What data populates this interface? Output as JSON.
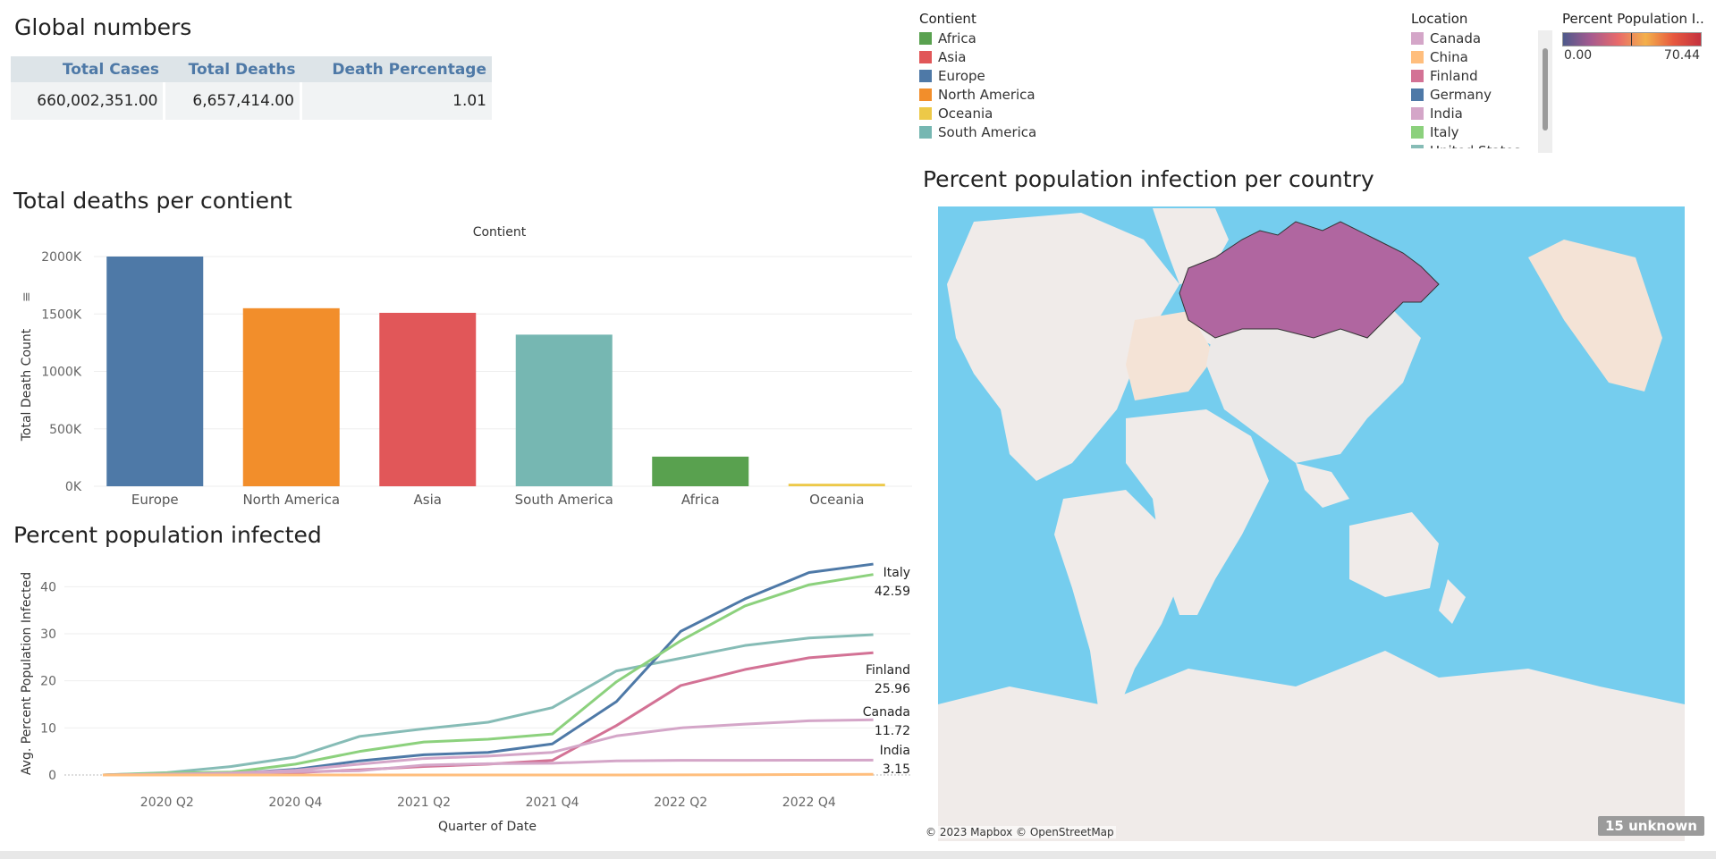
{
  "global_numbers": {
    "title": "Global numbers",
    "headers": [
      "Total Cases",
      "Total Deaths",
      "Death Percentage"
    ],
    "values": [
      "660,002,351.00",
      "6,657,414.00",
      "1.01"
    ]
  },
  "contient_legend": {
    "title": "Contient",
    "items": [
      {
        "label": "Africa",
        "color": "#59a14f"
      },
      {
        "label": "Asia",
        "color": "#e15759"
      },
      {
        "label": "Europe",
        "color": "#4e79a7"
      },
      {
        "label": "North America",
        "color": "#f28e2b"
      },
      {
        "label": "Oceania",
        "color": "#edc948"
      },
      {
        "label": "South America",
        "color": "#76b7b2"
      }
    ]
  },
  "location_legend": {
    "title": "Location",
    "items": [
      {
        "label": "Canada",
        "color": "#d4a6c8"
      },
      {
        "label": "China",
        "color": "#ffbe7d"
      },
      {
        "label": "Finland",
        "color": "#d37295"
      },
      {
        "label": "Germany",
        "color": "#4e79a7"
      },
      {
        "label": "India",
        "color": "#d4a6c8"
      },
      {
        "label": "Italy",
        "color": "#8cd17d"
      },
      {
        "label": "United States",
        "color": "#86bcb6"
      }
    ]
  },
  "percent_legend": {
    "title": "Percent Population I..",
    "min": "0.00",
    "max": "70.44"
  },
  "deaths_chart": {
    "title": "Total deaths per contient",
    "header": "Contient",
    "ylabel": "Total Death Count",
    "yticks": [
      "0K",
      "500K",
      "1000K",
      "1500K",
      "2000K"
    ]
  },
  "infected_chart": {
    "title": "Percent population infected",
    "ylabel": "Avg. Percent Population Infected",
    "xlabel": "Quarter of Date",
    "yticks": [
      "0",
      "10",
      "20",
      "30",
      "40"
    ],
    "xticks": [
      "2020 Q2",
      "2020 Q4",
      "2021 Q2",
      "2021 Q4",
      "2022 Q2",
      "2022 Q4"
    ]
  },
  "map": {
    "title": "Percent population infection per country",
    "attribution": "© 2023 Mapbox © OpenStreetMap",
    "unknown_badge": "15 unknown"
  },
  "chart_data": [
    {
      "type": "bar",
      "title": "Total deaths per contient",
      "xlabel": "Contient",
      "ylabel": "Total Death Count",
      "ylim": [
        0,
        2000000
      ],
      "categories": [
        "Europe",
        "North America",
        "Asia",
        "South America",
        "Africa",
        "Oceania"
      ],
      "values": [
        2000000,
        1550000,
        1510000,
        1320000,
        258000,
        22000
      ],
      "colors": [
        "#4e79a7",
        "#f28e2b",
        "#e15759",
        "#76b7b2",
        "#59a14f",
        "#edc948"
      ]
    },
    {
      "type": "line",
      "title": "Percent population infected",
      "xlabel": "Quarter of Date",
      "ylabel": "Avg. Percent Population Infected",
      "ylim": [
        0,
        45
      ],
      "x": [
        "2020 Q1",
        "2020 Q2",
        "2020 Q3",
        "2020 Q4",
        "2021 Q1",
        "2021 Q2",
        "2021 Q3",
        "2021 Q4",
        "2022 Q1",
        "2022 Q2",
        "2022 Q3",
        "2022 Q4",
        "2023 Q1"
      ],
      "series": [
        {
          "name": "United States",
          "color": "#86bcb6",
          "values": [
            0,
            0.5,
            1.8,
            3.8,
            8.2,
            9.8,
            11.2,
            14.3,
            22.1,
            24.8,
            27.5,
            29.1,
            29.8
          ]
        },
        {
          "name": "Germany",
          "color": "#4e79a7",
          "values": [
            0,
            0.2,
            0.3,
            1.2,
            3.0,
            4.3,
            4.8,
            6.6,
            15.6,
            30.5,
            37.4,
            43.0,
            44.8
          ]
        },
        {
          "name": "Italy",
          "color": "#8cd17d",
          "label": "Italy",
          "end_value": "42.59",
          "values": [
            0,
            0.4,
            0.6,
            2.3,
            5.0,
            7.0,
            7.6,
            8.7,
            19.8,
            28.5,
            35.9,
            40.4,
            42.59
          ]
        },
        {
          "name": "Finland",
          "color": "#d37295",
          "label": "Finland",
          "end_value": "25.96",
          "values": [
            0,
            0.1,
            0.2,
            0.5,
            1.1,
            1.8,
            2.3,
            3.1,
            10.5,
            19.0,
            22.4,
            24.9,
            25.96
          ]
        },
        {
          "name": "Canada",
          "color": "#d4a6c8",
          "label": "Canada",
          "end_value": "11.72",
          "values": [
            0,
            0.2,
            0.4,
            1.0,
            2.3,
            3.5,
            4.0,
            4.8,
            8.3,
            10.0,
            10.8,
            11.5,
            11.72
          ]
        },
        {
          "name": "India",
          "color": "#d4a6c8",
          "label": "India",
          "end_value": "3.15",
          "values": [
            0,
            0.05,
            0.4,
            0.7,
            0.9,
            2.1,
            2.4,
            2.5,
            3.0,
            3.1,
            3.12,
            3.14,
            3.15
          ]
        },
        {
          "name": "China",
          "color": "#ffbe7d",
          "values": [
            0,
            0.0,
            0.0,
            0.0,
            0.0,
            0.0,
            0.0,
            0.0,
            0.0,
            0.02,
            0.05,
            0.1,
            0.15
          ]
        }
      ]
    }
  ]
}
